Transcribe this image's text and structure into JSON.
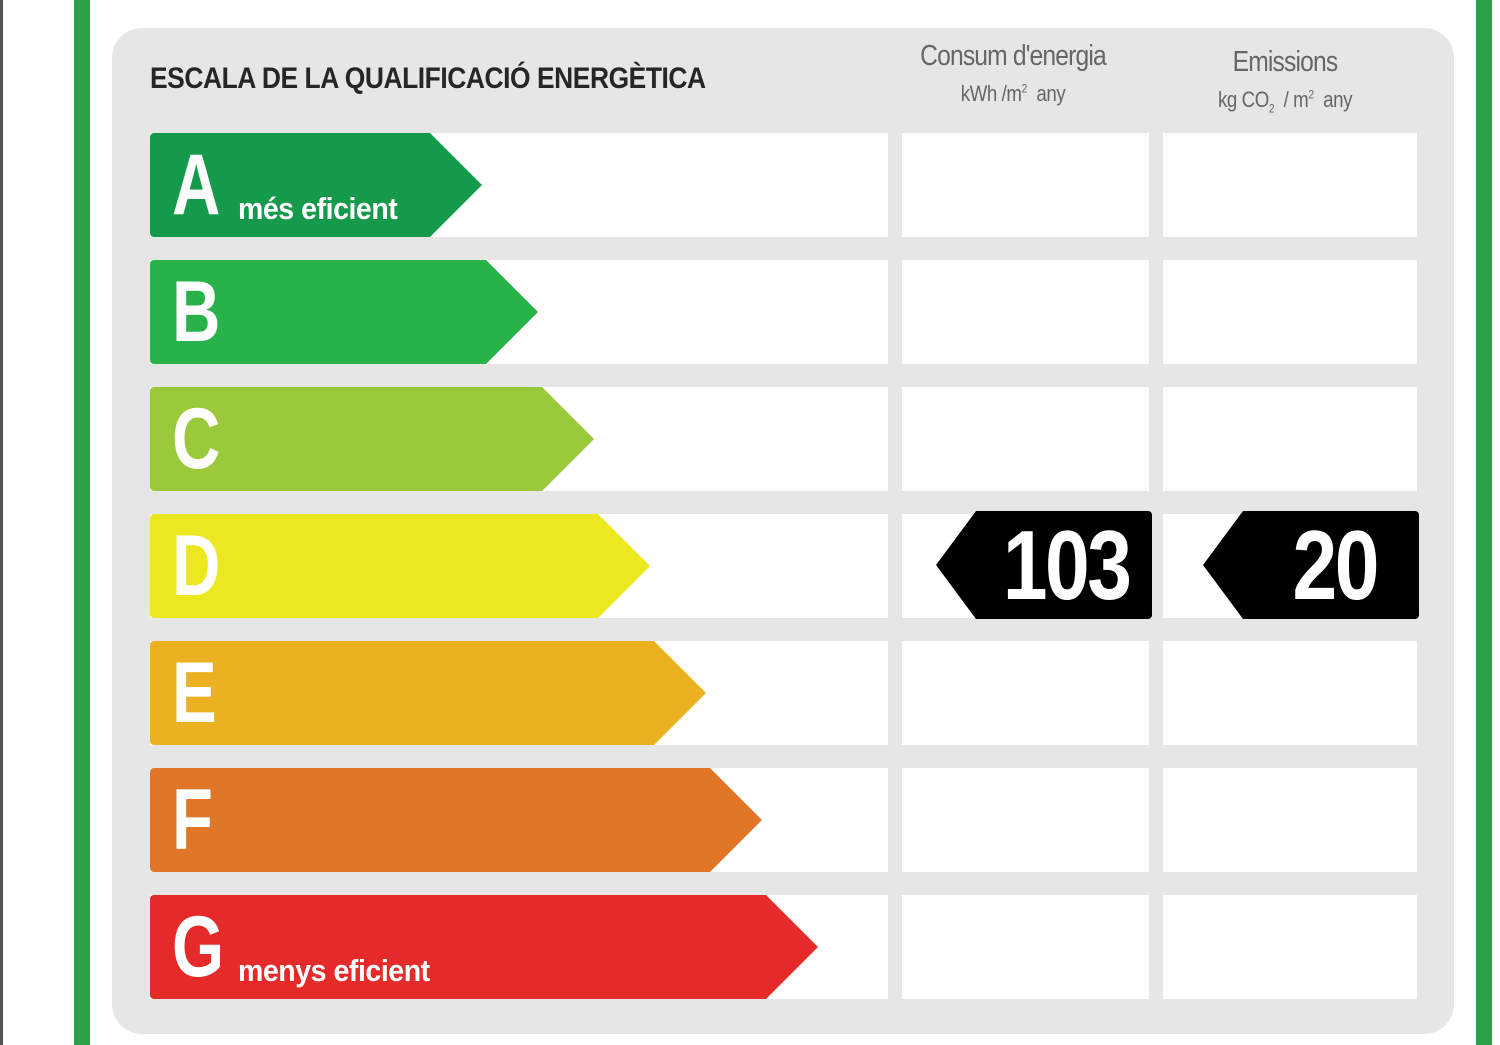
{
  "title": "ESCALA DE LA QUALIFICACIÓ ENERGÈTICA",
  "columns": {
    "energy": {
      "label": "Consum d'energia",
      "unit_prefix": "kWh /m",
      "unit_sup": "2",
      "unit_suffix": "any"
    },
    "emissions": {
      "label": "Emissions",
      "unit_prefix": "kg CO",
      "unit_sub": "2",
      "unit_mid": "/ m",
      "unit_sup": "2",
      "unit_suffix": "any"
    }
  },
  "ratings": [
    {
      "letter": "A",
      "sublabel": "més eficient",
      "color": "#159a4b"
    },
    {
      "letter": "B",
      "sublabel": "",
      "color": "#27b24a"
    },
    {
      "letter": "C",
      "sublabel": "",
      "color": "#9aca3c"
    },
    {
      "letter": "D",
      "sublabel": "",
      "color": "#ece820"
    },
    {
      "letter": "E",
      "sublabel": "",
      "color": "#ecb121"
    },
    {
      "letter": "F",
      "sublabel": "",
      "color": "#e07627"
    },
    {
      "letter": "G",
      "sublabel": "menys eficient",
      "color": "#e52a2a"
    }
  ],
  "result": {
    "rating": "D",
    "energy_value": "103",
    "emissions_value": "20"
  },
  "colors": {
    "frame_green": "#2aa047",
    "panel_gray": "#e6e6e6",
    "value_tag": "#000000"
  }
}
